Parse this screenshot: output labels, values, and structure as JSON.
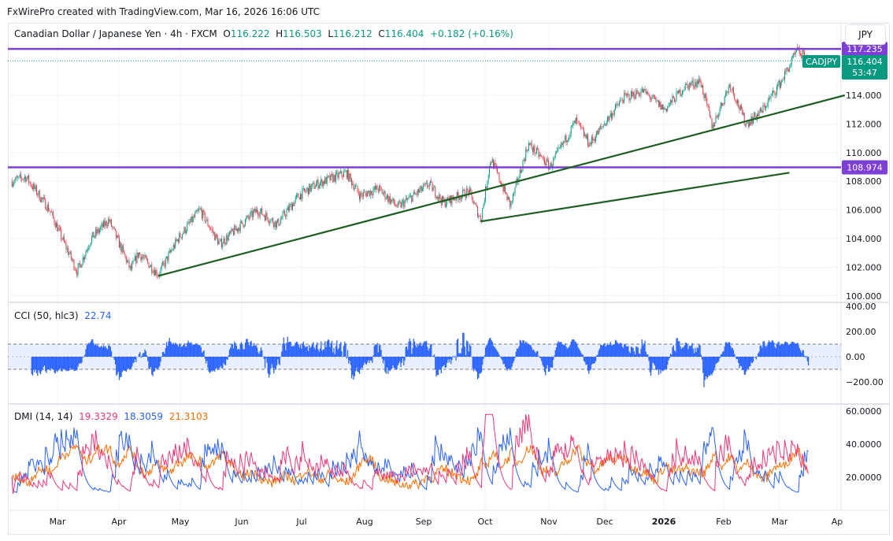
{
  "credit": "FxWirePro created with TradingView.com, Mar 16, 2026 16:06 UTC",
  "legend": {
    "symbol_desc": "Canadian Dollar / Japanese Yen · 4h · FXCM",
    "o_label": "O",
    "o": "116.222",
    "h_label": "H",
    "h": "116.503",
    "l_label": "L",
    "l": "116.212",
    "c_label": "C",
    "c": "116.404",
    "change": "+0.182 (+0.16%)"
  },
  "currency_button": "JPY",
  "price_axis": {
    "ticks": [
      "100.000",
      "102.000",
      "104.000",
      "106.000",
      "108.000",
      "110.000",
      "112.000",
      "114.000"
    ],
    "last_price_label": "116.404",
    "countdown": "53:47",
    "symbol_tag": "CADJPY",
    "resistance_label": "117.235",
    "support_label": "108.974"
  },
  "cci": {
    "title": "CCI (50, hlc3)",
    "value": "22.74",
    "ticks": [
      "400.00",
      "200.00",
      "0.00",
      "−200.00"
    ]
  },
  "dmi": {
    "title": "DMI (14, 14)",
    "plus_di": "19.3329",
    "minus_di": "18.3059",
    "adx": "21.3103",
    "ticks": [
      "60.0000",
      "40.0000",
      "20.0000"
    ]
  },
  "time_axis": {
    "labels": [
      "Mar",
      "Apr",
      "May",
      "Jun",
      "Jul",
      "Aug",
      "Sep",
      "Oct",
      "Nov",
      "Dec",
      "2026",
      "Feb",
      "Mar",
      "Ap"
    ]
  },
  "colors": {
    "up": "#089981",
    "down": "#f23645",
    "hline": "#7e3fd6",
    "trend": "#1b5e20",
    "cci": "#2962ff",
    "plus_di": "#f23672",
    "minus_di": "#2962ff",
    "adx": "#ff6d00"
  },
  "chart_data": {
    "type": "candlestick",
    "symbol": "CADJPY",
    "timeframe": "4h",
    "ylim": [
      99.5,
      117.8
    ],
    "price_anchors": [
      [
        "2025-02-06",
        108.0
      ],
      [
        "2025-02-13",
        108.3
      ],
      [
        "2025-02-25",
        106.0
      ],
      [
        "2025-03-05",
        103.5
      ],
      [
        "2025-03-11",
        101.7
      ],
      [
        "2025-03-18",
        104.0
      ],
      [
        "2025-03-27",
        105.3
      ],
      [
        "2025-04-07",
        101.8
      ],
      [
        "2025-04-11",
        103.0
      ],
      [
        "2025-04-21",
        101.5
      ],
      [
        "2025-05-01",
        104.0
      ],
      [
        "2025-05-12",
        106.0
      ],
      [
        "2025-05-22",
        103.6
      ],
      [
        "2025-06-10",
        106.0
      ],
      [
        "2025-06-20",
        105.0
      ],
      [
        "2025-07-01",
        107.0
      ],
      [
        "2025-07-10",
        107.8
      ],
      [
        "2025-07-25",
        108.6
      ],
      [
        "2025-08-01",
        107.0
      ],
      [
        "2025-08-10",
        107.5
      ],
      [
        "2025-08-20",
        106.2
      ],
      [
        "2025-09-05",
        107.8
      ],
      [
        "2025-09-12",
        106.5
      ],
      [
        "2025-09-25",
        107.3
      ],
      [
        "2025-10-01",
        105.3
      ],
      [
        "2025-10-06",
        109.6
      ],
      [
        "2025-10-16",
        106.3
      ],
      [
        "2025-10-25",
        110.6
      ],
      [
        "2025-11-05",
        109.0
      ],
      [
        "2025-11-18",
        112.2
      ],
      [
        "2025-11-25",
        110.6
      ],
      [
        "2025-12-05",
        112.5
      ],
      [
        "2025-12-12",
        113.8
      ],
      [
        "2025-12-22",
        114.3
      ],
      [
        "2026-01-02",
        113.0
      ],
      [
        "2026-01-12",
        114.6
      ],
      [
        "2026-01-20",
        115.0
      ],
      [
        "2026-01-26",
        111.8
      ],
      [
        "2026-02-04",
        114.8
      ],
      [
        "2026-02-12",
        112.0
      ],
      [
        "2026-02-20",
        112.9
      ],
      [
        "2026-03-02",
        115.0
      ],
      [
        "2026-03-10",
        117.1
      ],
      [
        "2026-03-16",
        116.4
      ]
    ],
    "horizontal_lines": [
      117.235,
      108.974
    ],
    "trendlines": [
      [
        [
          "2025-04-21",
          101.4
        ],
        [
          "2026-04-03",
          114.0
        ]
      ],
      [
        [
          "2025-10-01",
          105.2
        ],
        [
          "2026-03-06",
          108.6
        ]
      ]
    ],
    "cci_range": [
      -300,
      400
    ],
    "cci_bands": [
      -100,
      100
    ],
    "dmi_range": [
      0,
      65
    ]
  }
}
